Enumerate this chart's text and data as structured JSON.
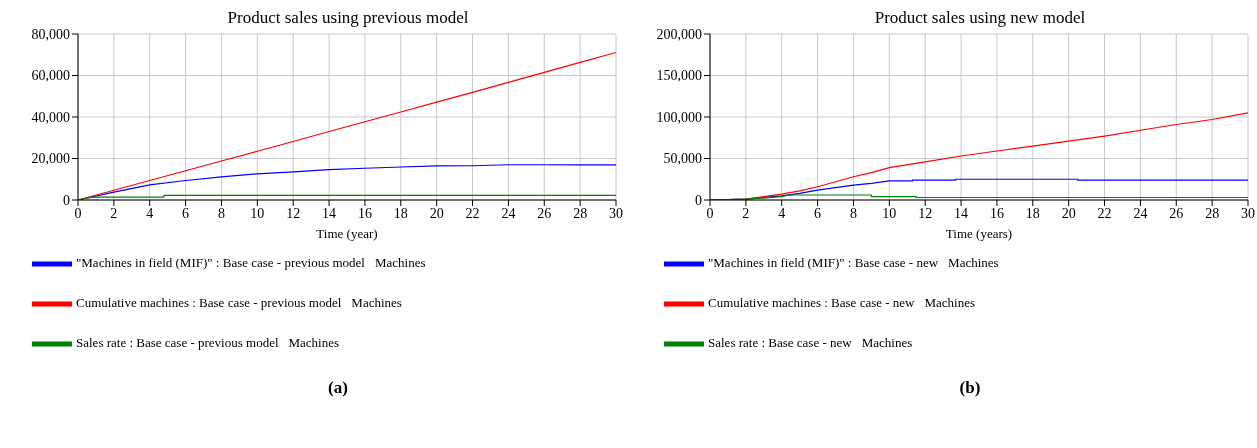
{
  "chart_data": [
    {
      "type": "line",
      "title": "Product sales using previous model",
      "xlabel": "Time (year)",
      "xlim": [
        0,
        30
      ],
      "xticks": [
        0,
        2,
        4,
        6,
        8,
        10,
        12,
        14,
        16,
        18,
        20,
        22,
        24,
        26,
        28,
        30
      ],
      "ylim": [
        0,
        80000
      ],
      "yticks": [
        {
          "value": 0,
          "label": "0"
        },
        {
          "value": 20000,
          "label": "20,000"
        },
        {
          "value": 40000,
          "label": "40,000"
        },
        {
          "value": 60000,
          "label": "60,000"
        },
        {
          "value": 80000,
          "label": "80,000"
        }
      ],
      "grid": true,
      "legend": "bottom",
      "series": [
        {
          "name": "\"Machines in field (MIF)\" : Base case - previous model",
          "color": "#0000ff",
          "x": [
            0,
            2,
            4,
            6,
            8,
            10,
            12,
            14,
            16,
            18,
            20,
            22,
            24,
            26,
            28,
            30
          ],
          "values": [
            0,
            3800,
            7300,
            9400,
            11100,
            12600,
            13600,
            14600,
            15300,
            15900,
            16400,
            16500,
            17000,
            17000,
            16900,
            16900
          ]
        },
        {
          "name": "Cumulative machines : Base case - previous model",
          "color": "#ff0000",
          "x": [
            0,
            2,
            4,
            6,
            8,
            10,
            12,
            14,
            16,
            18,
            20,
            22,
            24,
            26,
            28,
            30
          ],
          "values": [
            0,
            4700,
            9400,
            14100,
            18800,
            23500,
            28200,
            33000,
            37700,
            42400,
            47200,
            51900,
            56700,
            61500,
            66300,
            71100
          ]
        },
        {
          "name": "Sales rate : Base case - previous model",
          "color": "#008000",
          "x": [
            0,
            0.5,
            1,
            2,
            3,
            4,
            4.8,
            4.8,
            6,
            8,
            10,
            12,
            14,
            16,
            18,
            20,
            22,
            24,
            26,
            28,
            30
          ],
          "values": [
            0,
            1000,
            1400,
            1400,
            1400,
            1400,
            1400,
            2200,
            2200,
            2200,
            2200,
            2200,
            2200,
            2200,
            2200,
            2200,
            2200,
            2200,
            2200,
            2200,
            2200
          ]
        }
      ],
      "annotations": [
        "Machines",
        "Machines",
        "Machines",
        "(a)"
      ]
    },
    {
      "type": "line",
      "title": "Product sales using new model",
      "xlabel": "Time (years)",
      "xlim": [
        0,
        30
      ],
      "xticks": [
        0,
        2,
        4,
        6,
        8,
        10,
        12,
        14,
        16,
        18,
        20,
        22,
        24,
        26,
        28,
        30
      ],
      "ylim": [
        0,
        200000
      ],
      "yticks": [
        {
          "value": 0,
          "label": "0"
        },
        {
          "value": 50000,
          "label": "50,000"
        },
        {
          "value": 100000,
          "label": "100,000"
        },
        {
          "value": 150000,
          "label": "150,000"
        },
        {
          "value": 200000,
          "label": "200,000"
        }
      ],
      "grid": true,
      "legend": "bottom",
      "series": [
        {
          "name": "\"Machines in field (MIF)\" : Base case - new",
          "color": "#0000ff",
          "x": [
            0,
            2,
            4,
            5,
            6,
            7,
            8,
            9,
            10,
            11.3,
            11.3,
            13.7,
            13.7,
            16,
            18,
            20.5,
            20.5,
            22,
            24,
            26,
            28,
            30
          ],
          "values": [
            0,
            1000,
            5000,
            8000,
            12000,
            15000,
            18000,
            20000,
            23000,
            23000,
            24000,
            24000,
            25000,
            25000,
            25000,
            25000,
            24000,
            24000,
            24000,
            24000,
            24000,
            24000
          ]
        },
        {
          "name": "Cumulative machines : Base case - new",
          "color": "#ff0000",
          "x": [
            0,
            2,
            3,
            4,
            5,
            6,
            7,
            8,
            9,
            10,
            12,
            14,
            16,
            18,
            20,
            22,
            24,
            26,
            28,
            30
          ],
          "values": [
            0,
            1000,
            4000,
            7000,
            11000,
            16000,
            22000,
            28000,
            33000,
            39000,
            46000,
            53000,
            59000,
            65000,
            71000,
            77000,
            84000,
            91000,
            97000,
            105000
          ]
        },
        {
          "name": "Sales rate : Base case - new",
          "color": "#008000",
          "x": [
            0,
            2,
            4,
            4.4,
            6,
            8,
            9,
            9,
            10,
            11.5,
            11.5,
            14,
            16,
            18,
            20,
            22,
            24,
            26,
            28,
            30
          ],
          "values": [
            0,
            1000,
            4000,
            6000,
            6000,
            6000,
            6000,
            4000,
            4000,
            4000,
            3000,
            3000,
            3000,
            3000,
            3000,
            3000,
            3000,
            3000,
            3000,
            3000
          ]
        }
      ],
      "annotations": [
        "Machines",
        "Machines",
        "Machines",
        "(b)"
      ]
    }
  ]
}
